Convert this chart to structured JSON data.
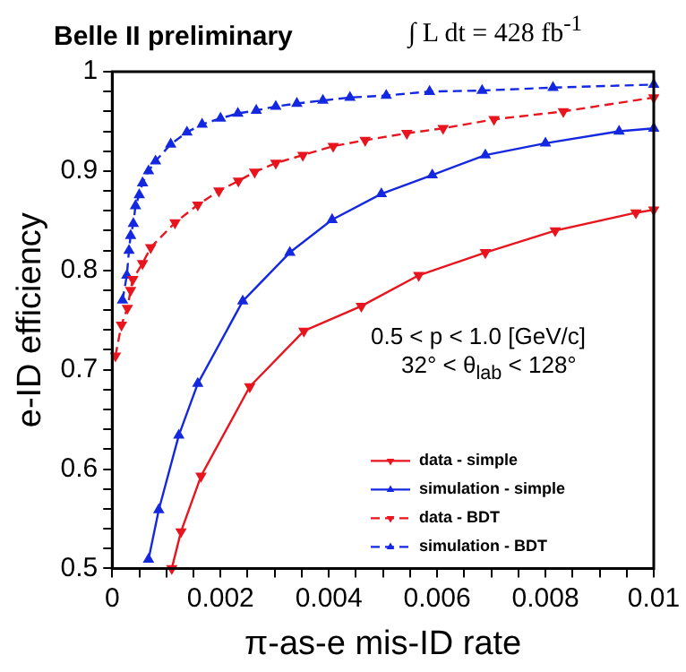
{
  "chart_data": {
    "type": "line",
    "title": "Belle II preliminary",
    "xlabel": "π-as-e mis-ID rate",
    "ylabel": "e-ID efficiency",
    "annotations": [
      "∫ L dt = 428 fb$^{-1}$",
      "0.5 < p < 1.0 [GeV/c]",
      "32° <  θ$_{lab}$ < 128°"
    ],
    "xlim": [
      0,
      0.01
    ],
    "ylim": [
      0.5,
      1
    ],
    "xticks": [
      0,
      {
        "value": 0.0005,
        "label": null
      },
      {
        "value": 0.001,
        "label": null
      },
      {
        "value": 0.0015,
        "label": null
      },
      0.002,
      {
        "value": 0.0025,
        "label": null
      },
      {
        "value": 0.003,
        "label": null
      },
      {
        "value": 0.0035,
        "label": null
      },
      0.004,
      {
        "value": 0.0045,
        "label": null
      },
      {
        "value": 0.005,
        "label": null
      },
      {
        "value": 0.0055,
        "label": null
      },
      0.006,
      {
        "value": 0.0065,
        "label": null
      },
      {
        "value": 0.007,
        "label": null
      },
      {
        "value": 0.0075,
        "label": null
      },
      0.008,
      {
        "value": 0.0085,
        "label": null
      },
      {
        "value": 0.009,
        "label": null
      },
      {
        "value": 0.0095,
        "label": null
      },
      0.01
    ],
    "yticks": [
      0.5,
      {
        "value": 0.52,
        "label": null
      },
      {
        "value": 0.54,
        "label": null
      },
      {
        "value": 0.56,
        "label": null
      },
      {
        "value": 0.58,
        "label": null
      },
      0.6,
      {
        "value": 0.62,
        "label": null
      },
      {
        "value": 0.64,
        "label": null
      },
      {
        "value": 0.66,
        "label": null
      },
      {
        "value": 0.68,
        "label": null
      },
      0.7,
      {
        "value": 0.72,
        "label": null
      },
      {
        "value": 0.74,
        "label": null
      },
      {
        "value": 0.76,
        "label": null
      },
      {
        "value": 0.78,
        "label": null
      },
      0.8,
      {
        "value": 0.82,
        "label": null
      },
      {
        "value": 0.84,
        "label": null
      },
      {
        "value": 0.86,
        "label": null
      },
      {
        "value": 0.88,
        "label": null
      },
      0.9,
      {
        "value": 0.92,
        "label": null
      },
      {
        "value": 0.94,
        "label": null
      },
      {
        "value": 0.96,
        "label": null
      },
      {
        "value": 0.98,
        "label": null
      },
      1
    ],
    "grid": false,
    "legend": "bottom right",
    "marker": "triangle",
    "series": [
      {
        "name": "data - simple",
        "color": "#e8141e",
        "line_style": "solid",
        "x": [
          0.0011,
          0.00127,
          0.00164,
          0.00254,
          0.00354,
          0.0046,
          0.00566,
          0.00689,
          0.00818,
          0.00967,
          0.01
        ],
        "values": [
          0.5,
          0.537,
          0.593,
          0.683,
          0.739,
          0.764,
          0.795,
          0.818,
          0.84,
          0.858,
          0.861
        ]
      },
      {
        "name": "simulation - simple",
        "color": "#1428e0",
        "line_style": "solid",
        "x": [
          0.00067,
          0.00086,
          0.00123,
          0.00158,
          0.00241,
          0.00328,
          0.00406,
          0.00497,
          0.00591,
          0.00689,
          0.008,
          0.00936,
          0.01
        ],
        "values": [
          0.509,
          0.559,
          0.634,
          0.686,
          0.769,
          0.818,
          0.851,
          0.877,
          0.896,
          0.916,
          0.928,
          0.94,
          0.943
        ]
      },
      {
        "name": "data - BDT",
        "color": "#e8141e",
        "line_style": "dashed",
        "x": [
          6e-05,
          0.00017,
          0.00028,
          0.00034,
          0.00038,
          0.00056,
          0.00071,
          0.00116,
          0.00158,
          0.00197,
          0.00233,
          0.00263,
          0.00302,
          0.00352,
          0.00408,
          0.00467,
          0.00544,
          0.00611,
          0.00705,
          0.00833,
          0.01
        ],
        "values": [
          0.714,
          0.745,
          0.762,
          0.78,
          0.791,
          0.807,
          0.823,
          0.848,
          0.866,
          0.88,
          0.89,
          0.899,
          0.908,
          0.916,
          0.925,
          0.931,
          0.938,
          0.943,
          0.952,
          0.96,
          0.974
        ]
      },
      {
        "name": "simulation - BDT",
        "color": "#1428e0",
        "line_style": "dashed",
        "x": [
          0.00019,
          0.00027,
          0.00031,
          0.00034,
          0.00039,
          0.00043,
          0.0005,
          0.00056,
          0.00067,
          0.0008,
          0.00108,
          0.00138,
          0.00166,
          0.002,
          0.00232,
          0.00266,
          0.00302,
          0.00341,
          0.00389,
          0.00439,
          0.00506,
          0.00586,
          0.00683,
          0.00814,
          0.01
        ],
        "values": [
          0.77,
          0.795,
          0.82,
          0.835,
          0.847,
          0.865,
          0.876,
          0.888,
          0.9,
          0.91,
          0.927,
          0.939,
          0.947,
          0.953,
          0.958,
          0.961,
          0.965,
          0.968,
          0.971,
          0.974,
          0.976,
          0.98,
          0.981,
          0.984,
          0.987
        ]
      }
    ]
  }
}
